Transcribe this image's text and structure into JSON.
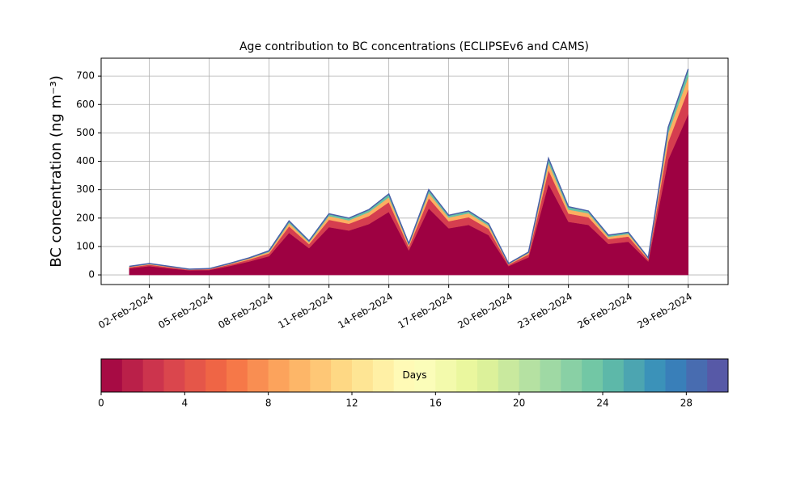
{
  "chart_data": {
    "type": "stacked_area",
    "title": "Age contribution to BC concentrations (ECLIPSEv6 and CAMS)",
    "y_label": "BC concentration (ng m⁻³)",
    "x": [
      "2024-02-01",
      "2024-02-02",
      "2024-02-03",
      "2024-02-04",
      "2024-02-05",
      "2024-02-06",
      "2024-02-07",
      "2024-02-08",
      "2024-02-09",
      "2024-02-10",
      "2024-02-11",
      "2024-02-12",
      "2024-02-13",
      "2024-02-14",
      "2024-02-15",
      "2024-02-16",
      "2024-02-17",
      "2024-02-18",
      "2024-02-19",
      "2024-02-20",
      "2024-02-21",
      "2024-02-22",
      "2024-02-23",
      "2024-02-24",
      "2024-02-25",
      "2024-02-26",
      "2024-02-27",
      "2024-02-28",
      "2024-02-29"
    ],
    "series": [
      {
        "color": "#9e0142",
        "values": [
          23,
          31,
          23,
          16,
          17,
          31,
          47,
          66,
          148,
          94,
          168,
          156,
          179,
          222,
          86,
          234,
          164,
          176,
          140,
          31,
          62,
          320,
          187,
          176,
          109,
          117,
          47,
          406,
          566
        ]
      },
      {
        "color": "#d53e4f",
        "values": [
          4,
          5,
          4,
          2,
          3,
          5,
          7,
          10,
          23,
          14,
          26,
          24,
          28,
          34,
          13,
          36,
          25,
          27,
          22,
          5,
          10,
          49,
          29,
          27,
          17,
          18,
          7,
          62,
          87
        ]
      },
      {
        "color": "#fdae61",
        "values": [
          2,
          2,
          2,
          1,
          1,
          2,
          4,
          5,
          11,
          7,
          13,
          12,
          14,
          17,
          7,
          18,
          13,
          14,
          11,
          2,
          5,
          25,
          14,
          14,
          8,
          9,
          4,
          31,
          44
        ]
      },
      {
        "color": "#66c2a5",
        "values": [
          1,
          2,
          1,
          1,
          1,
          2,
          2,
          4,
          8,
          5,
          8,
          8,
          9,
          12,
          4,
          12,
          8,
          8,
          7,
          2,
          3,
          16,
          10,
          8,
          6,
          6,
          2,
          21,
          28
        ]
      }
    ],
    "line_color": "#4a5fa8",
    "xlim": [
      "2024-01-30T14:00Z",
      "2024-03-02T00:00Z"
    ],
    "xticks": [
      {
        "value": "2024-02-02",
        "label": "02-Feb-2024"
      },
      {
        "value": "2024-02-05",
        "label": "05-Feb-2024"
      },
      {
        "value": "2024-02-08",
        "label": "08-Feb-2024"
      },
      {
        "value": "2024-02-11",
        "label": "11-Feb-2024"
      },
      {
        "value": "2024-02-14",
        "label": "14-Feb-2024"
      },
      {
        "value": "2024-02-17",
        "label": "17-Feb-2024"
      },
      {
        "value": "2024-02-20",
        "label": "20-Feb-2024"
      },
      {
        "value": "2024-02-23",
        "label": "23-Feb-2024"
      },
      {
        "value": "2024-02-26",
        "label": "26-Feb-2024"
      },
      {
        "value": "2024-02-29",
        "label": "29-Feb-2024"
      }
    ],
    "ylim": [
      -34,
      763
    ],
    "yticks": [
      0,
      100,
      200,
      300,
      400,
      500,
      600,
      700
    ],
    "grid": true,
    "colorbar": {
      "label": "Days",
      "lim": [
        0,
        30
      ],
      "levels": 30,
      "ticks": [
        0,
        4,
        8,
        12,
        16,
        20,
        24,
        28
      ],
      "colormap_stops": [
        "#9e0142",
        "#d53e4f",
        "#f46d43",
        "#fdae61",
        "#fee08b",
        "#ffffbf",
        "#e6f598",
        "#abdda4",
        "#66c2a5",
        "#3288bd",
        "#5e4fa2"
      ]
    }
  }
}
